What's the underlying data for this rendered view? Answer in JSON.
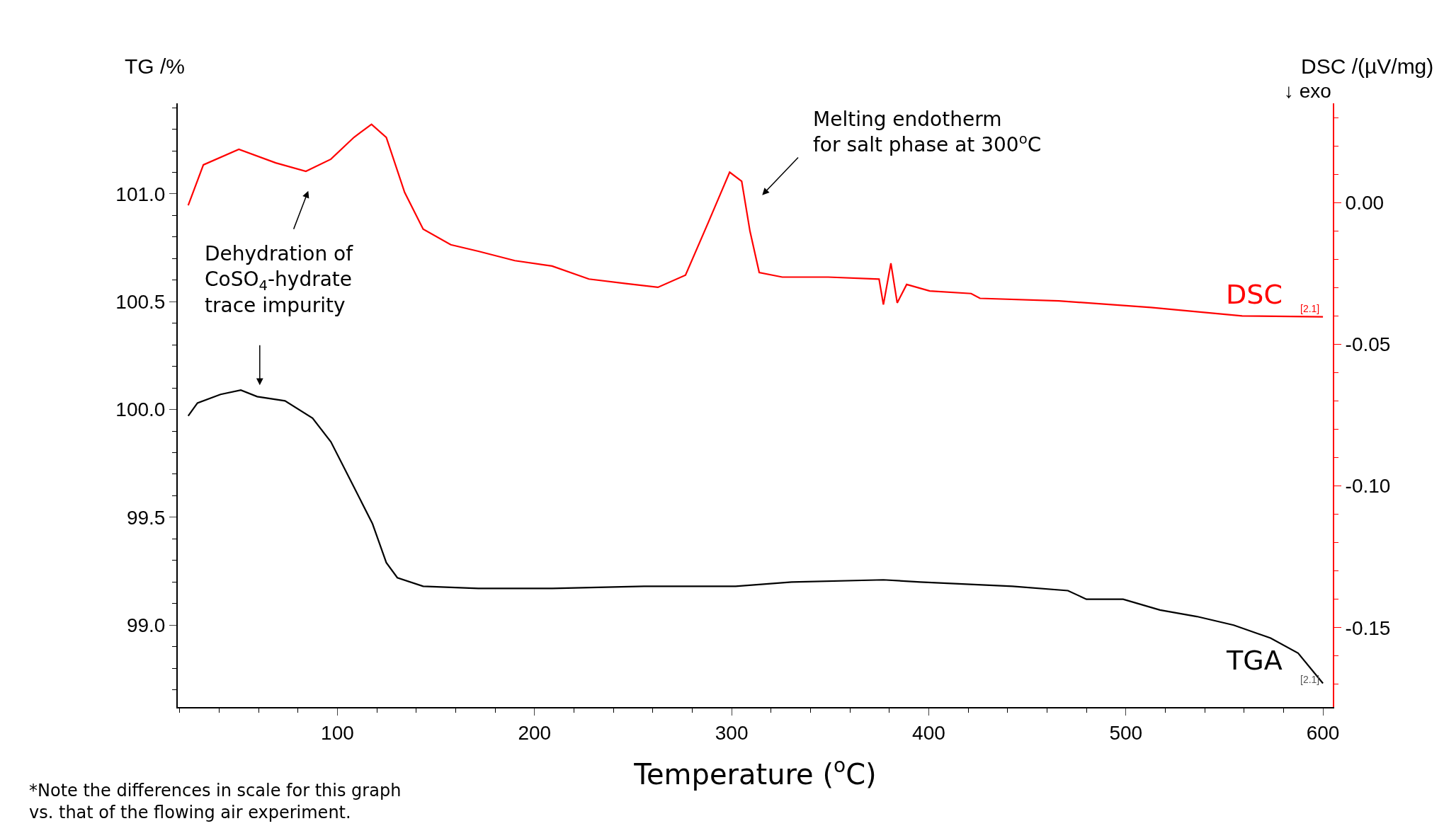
{
  "chart_data": {
    "type": "line",
    "xlabel": "Temperature ($^{o}$C)",
    "ylabel": "TG /%",
    "y2label": "DSC /(µV/mg)",
    "xlim": [
      19,
      605
    ],
    "xticks": [
      100,
      200,
      300,
      400,
      500,
      600
    ],
    "ylim": [
      98.62,
      101.42
    ],
    "yticks": [
      {
        "value": 99.0,
        "label": "99.0"
      },
      {
        "value": 99.5,
        "label": "99.5"
      },
      {
        "value": 100.0,
        "label": "100.0"
      },
      {
        "value": 100.5,
        "label": "100.5"
      },
      {
        "value": 101.0,
        "label": "101.0"
      }
    ],
    "y2lim": [
      -0.178,
      0.035
    ],
    "y2ticks": [
      {
        "value": -0.15,
        "label": "-0.15"
      },
      {
        "value": -0.1,
        "label": "-0.10"
      },
      {
        "value": -0.05,
        "label": "-0.05"
      },
      {
        "value": 0,
        "label": "0.00"
      }
    ],
    "legend": false,
    "line_style": "solid",
    "marker": "none",
    "series": [
      {
        "name": "DSC",
        "color": "#ff0000",
        "axis": "y2",
        "x": [
          24.3,
          32,
          50,
          68.7,
          84,
          96.7,
          108.4,
          117.3,
          124.8,
          134.1,
          143.5,
          157.5,
          171.5,
          190,
          208.9,
          227.6,
          246.3,
          262.6,
          276.6,
          288.3,
          299,
          305.1,
          309.3,
          314,
          325.7,
          349,
          374.8,
          377,
          380.8,
          384,
          388.8,
          400.5,
          421.5,
          426,
          466,
          512.6,
          559,
          600
        ],
        "values": [
          -0.001,
          0.0133,
          0.0188,
          0.014,
          0.011,
          0.0153,
          0.023,
          0.0276,
          0.023,
          0.0036,
          -0.0094,
          -0.0149,
          -0.0172,
          -0.0205,
          -0.0224,
          -0.027,
          -0.0286,
          -0.0299,
          -0.0256,
          -0.0068,
          0.0107,
          0.0075,
          -0.0101,
          -0.0247,
          -0.0263,
          -0.0263,
          -0.027,
          -0.036,
          -0.0214,
          -0.0354,
          -0.0289,
          -0.0312,
          -0.0321,
          -0.0338,
          -0.0347,
          -0.037,
          -0.04,
          -0.0403
        ]
      },
      {
        "name": "TGA",
        "color": "#000000",
        "x": [
          24.3,
          29,
          40.7,
          51,
          59.3,
          73.4,
          87.4,
          96.7,
          108.4,
          117.8,
          124.8,
          130.4,
          143.5,
          171.5,
          209,
          255.6,
          302,
          330.4,
          377,
          395.8,
          442.5,
          470.6,
          480,
          498.6,
          517.3,
          536,
          554.7,
          573.4,
          587.4,
          600
        ],
        "values": [
          99.97,
          100.03,
          100.07,
          100.09,
          100.06,
          100.04,
          99.96,
          99.85,
          99.64,
          99.47,
          99.29,
          99.22,
          99.18,
          99.17,
          99.17,
          99.18,
          99.18,
          99.2,
          99.21,
          99.2,
          99.18,
          99.16,
          99.12,
          99.12,
          99.07,
          99.04,
          99.0,
          98.94,
          98.87,
          98.73
        ]
      }
    ],
    "annotations": [
      "Dehydration of\nCoSO$_{4}$-hydrate\ntrace impurity",
      "Melting endotherm\nfor salt phase at 300$^{o}$C",
      "[2.1]",
      "[2.1]",
      "↓ exo",
      "*Note the differences in scale for this graph\nvs. that of the flowing air experiment."
    ]
  }
}
